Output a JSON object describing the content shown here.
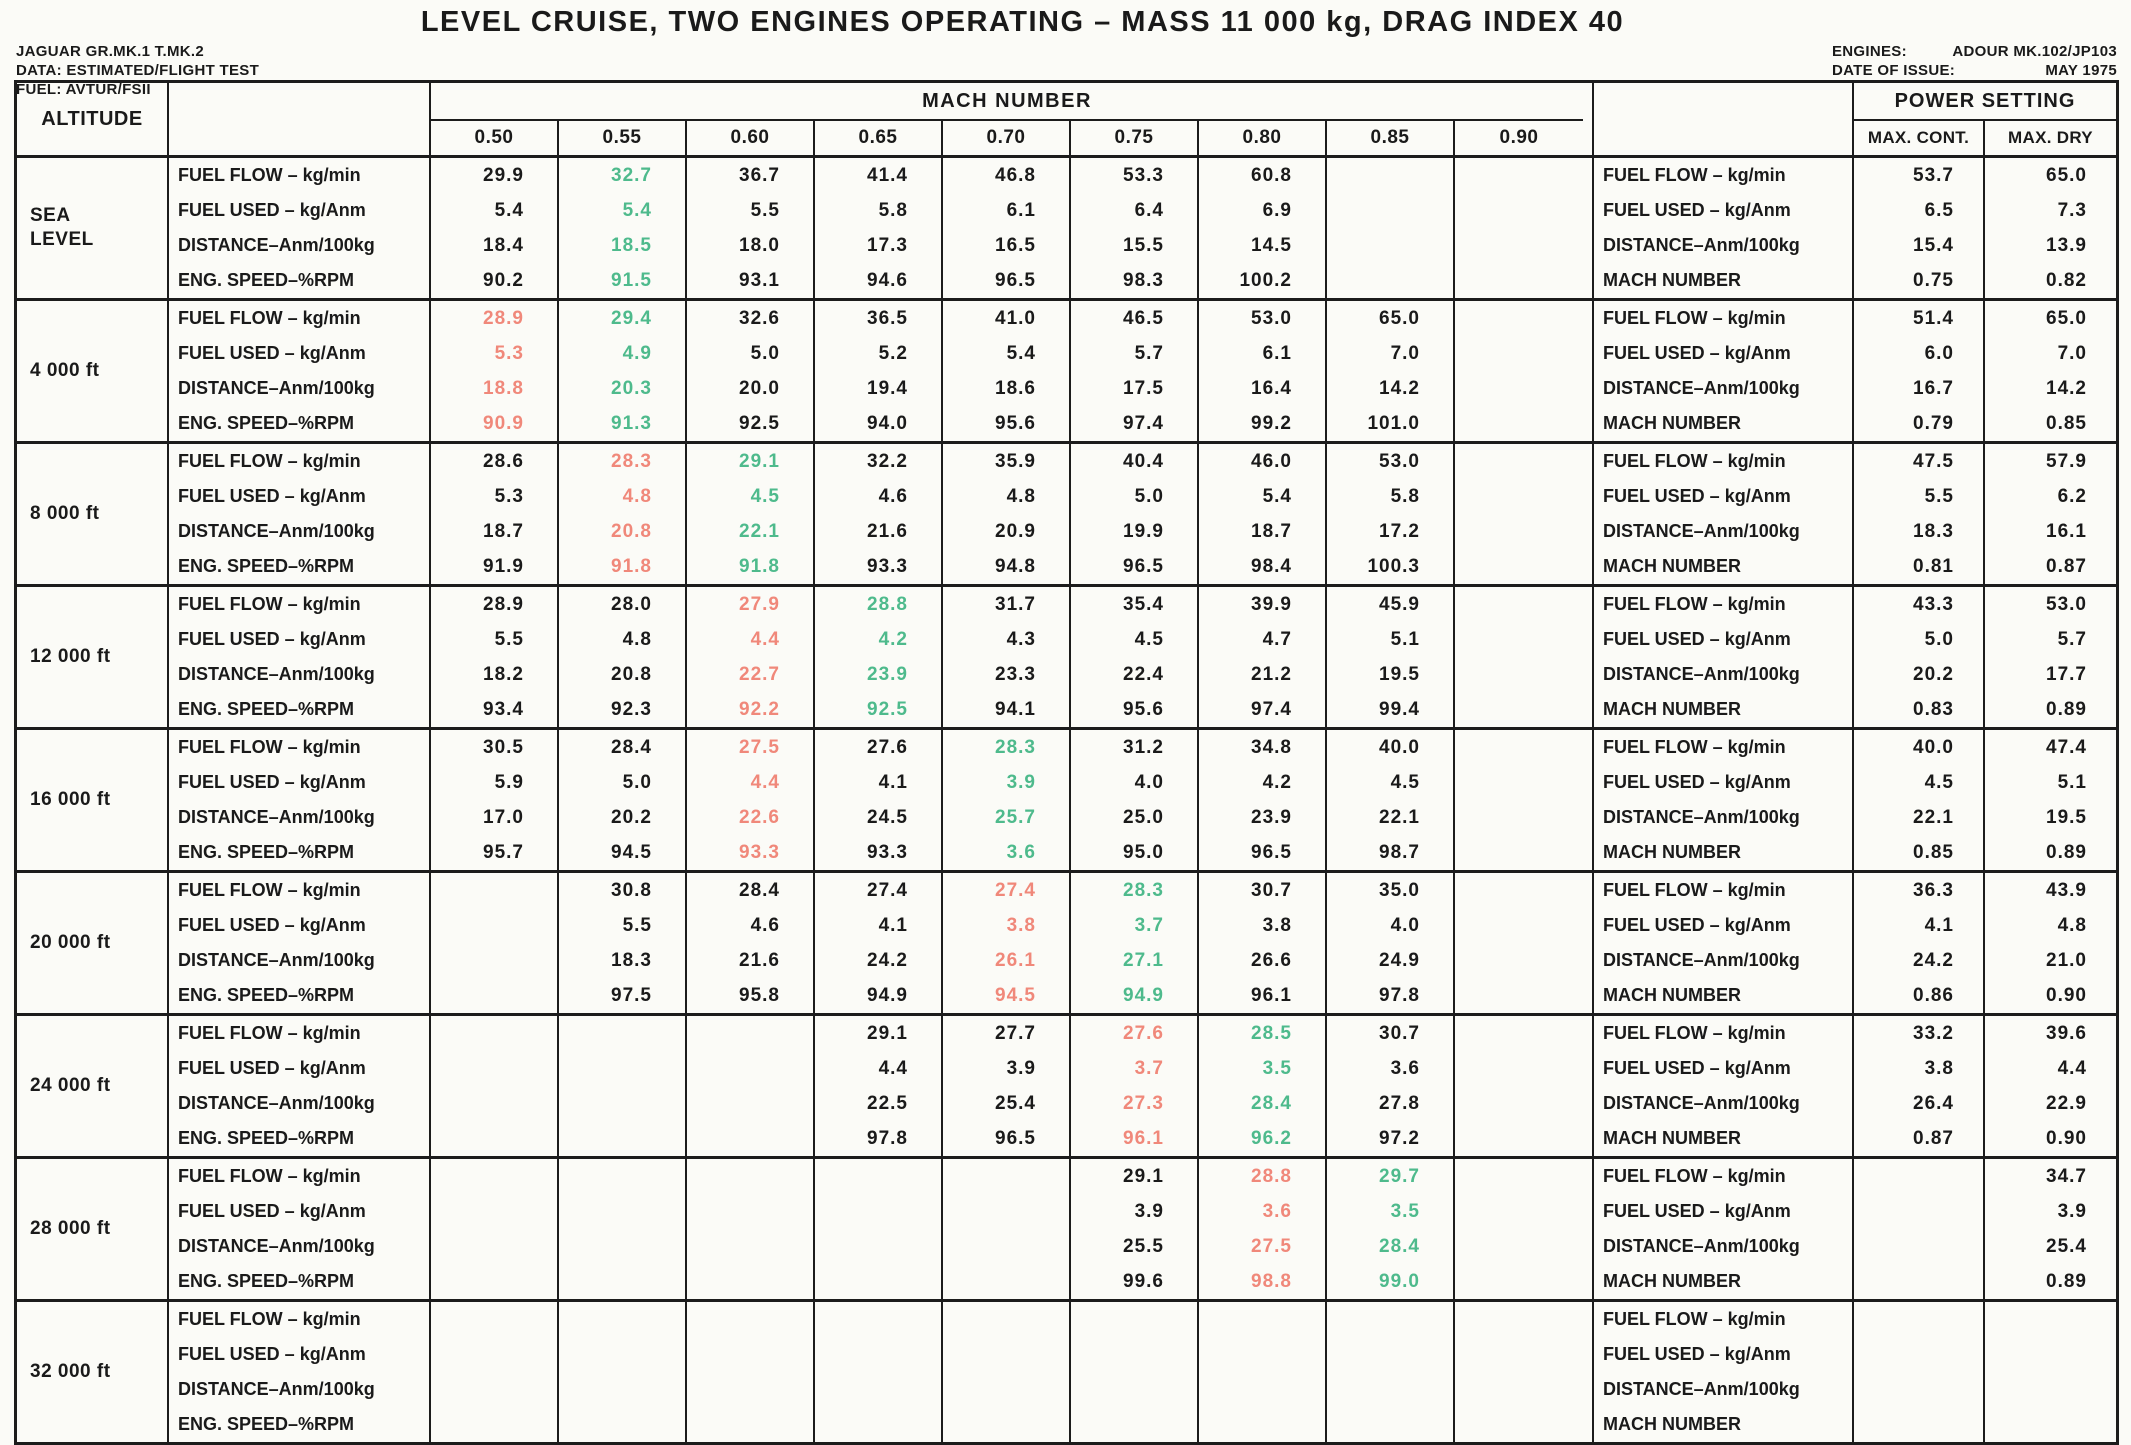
{
  "title": "LEVEL CRUISE, TWO ENGINES OPERATING – MASS 11 000 kg, DRAG INDEX 40",
  "meta_left": {
    "line1": "JAGUAR GR.MK.1 T.MK.2",
    "line2": "DATA: ESTIMATED/FLIGHT TEST",
    "line3": "FUEL: AVTUR/FSII"
  },
  "meta_right": {
    "engines_label": "ENGINES:",
    "engines_value": "ADOUR MK.102/JP103",
    "date_label": "DATE OF ISSUE:",
    "date_value": "MAY 1975"
  },
  "table": {
    "altitude_header": "ALTITUDE",
    "mach_header": "MACH NUMBER",
    "mach_columns": [
      "0.50",
      "0.55",
      "0.60",
      "0.65",
      "0.70",
      "0.75",
      "0.80",
      "0.85",
      "0.90"
    ],
    "power_header": "POWER SETTING",
    "power_columns": [
      "MAX. CONT.",
      "MAX. DRY"
    ],
    "row_labels": [
      "FUEL FLOW – kg/min",
      "FUEL USED – kg/Anm",
      "DISTANCE–Anm/100kg",
      "ENG. SPEED–%RPM"
    ],
    "power_row_labels": [
      "FUEL FLOW – kg/min",
      "FUEL USED – kg/Anm",
      "DISTANCE–Anm/100kg",
      "MACH NUMBER"
    ],
    "colors": {
      "green": "#4eba8c",
      "red": "#f0887a",
      "black": "#1a1a1a"
    },
    "bands": [
      {
        "altitude": "SEA\nLEVEL",
        "rows": [
          {
            "values": [
              "29.9",
              "32.7",
              "36.7",
              "41.4",
              "46.8",
              "53.3",
              "60.8",
              "",
              ""
            ],
            "colors": "kgkkkkkkk"
          },
          {
            "values": [
              "5.4",
              "5.4",
              "5.5",
              "5.8",
              "6.1",
              "6.4",
              "6.9",
              "",
              ""
            ],
            "colors": "kgkkkkkkk"
          },
          {
            "values": [
              "18.4",
              "18.5",
              "18.0",
              "17.3",
              "16.5",
              "15.5",
              "14.5",
              "",
              ""
            ],
            "colors": "kgkkkkkkk"
          },
          {
            "values": [
              "90.2",
              "91.5",
              "93.1",
              "94.6",
              "96.5",
              "98.3",
              "100.2",
              "",
              ""
            ],
            "colors": "kgkkkkkkk"
          }
        ],
        "power": {
          "max_cont": [
            "53.7",
            "6.5",
            "15.4",
            "0.75"
          ],
          "max_dry": [
            "65.0",
            "7.3",
            "13.9",
            "0.82"
          ]
        }
      },
      {
        "altitude": "4 000 ft",
        "rows": [
          {
            "values": [
              "28.9",
              "29.4",
              "32.6",
              "36.5",
              "41.0",
              "46.5",
              "53.0",
              "65.0",
              ""
            ],
            "colors": "rgkkkkkkk"
          },
          {
            "values": [
              "5.3",
              "4.9",
              "5.0",
              "5.2",
              "5.4",
              "5.7",
              "6.1",
              "7.0",
              ""
            ],
            "colors": "rgkkkkkkk"
          },
          {
            "values": [
              "18.8",
              "20.3",
              "20.0",
              "19.4",
              "18.6",
              "17.5",
              "16.4",
              "14.2",
              ""
            ],
            "colors": "rgkkkkkkk"
          },
          {
            "values": [
              "90.9",
              "91.3",
              "92.5",
              "94.0",
              "95.6",
              "97.4",
              "99.2",
              "101.0",
              ""
            ],
            "colors": "rgkkkkkkk"
          }
        ],
        "power": {
          "max_cont": [
            "51.4",
            "6.0",
            "16.7",
            "0.79"
          ],
          "max_dry": [
            "65.0",
            "7.0",
            "14.2",
            "0.85"
          ]
        }
      },
      {
        "altitude": "8 000 ft",
        "rows": [
          {
            "values": [
              "28.6",
              "28.3",
              "29.1",
              "32.2",
              "35.9",
              "40.4",
              "46.0",
              "53.0",
              ""
            ],
            "colors": "krgkkkkkk"
          },
          {
            "values": [
              "5.3",
              "4.8",
              "4.5",
              "4.6",
              "4.8",
              "5.0",
              "5.4",
              "5.8",
              ""
            ],
            "colors": "krgkkkkkk"
          },
          {
            "values": [
              "18.7",
              "20.8",
              "22.1",
              "21.6",
              "20.9",
              "19.9",
              "18.7",
              "17.2",
              ""
            ],
            "colors": "krgkkkkkk"
          },
          {
            "values": [
              "91.9",
              "91.8",
              "91.8",
              "93.3",
              "94.8",
              "96.5",
              "98.4",
              "100.3",
              ""
            ],
            "colors": "krgkkkkkk"
          }
        ],
        "power": {
          "max_cont": [
            "47.5",
            "5.5",
            "18.3",
            "0.81"
          ],
          "max_dry": [
            "57.9",
            "6.2",
            "16.1",
            "0.87"
          ]
        }
      },
      {
        "altitude": "12 000 ft",
        "rows": [
          {
            "values": [
              "28.9",
              "28.0",
              "27.9",
              "28.8",
              "31.7",
              "35.4",
              "39.9",
              "45.9",
              ""
            ],
            "colors": "kkrgkkkkk"
          },
          {
            "values": [
              "5.5",
              "4.8",
              "4.4",
              "4.2",
              "4.3",
              "4.5",
              "4.7",
              "5.1",
              ""
            ],
            "colors": "kkrgkkkkk"
          },
          {
            "values": [
              "18.2",
              "20.8",
              "22.7",
              "23.9",
              "23.3",
              "22.4",
              "21.2",
              "19.5",
              ""
            ],
            "colors": "kkrgkkkkk"
          },
          {
            "values": [
              "93.4",
              "92.3",
              "92.2",
              "92.5",
              "94.1",
              "95.6",
              "97.4",
              "99.4",
              ""
            ],
            "colors": "kkrgkkkkk"
          }
        ],
        "power": {
          "max_cont": [
            "43.3",
            "5.0",
            "20.2",
            "0.83"
          ],
          "max_dry": [
            "53.0",
            "5.7",
            "17.7",
            "0.89"
          ]
        }
      },
      {
        "altitude": "16 000 ft",
        "rows": [
          {
            "values": [
              "30.5",
              "28.4",
              "27.5",
              "27.6",
              "28.3",
              "31.2",
              "34.8",
              "40.0",
              ""
            ],
            "colors": "kkrkgkkkk"
          },
          {
            "values": [
              "5.9",
              "5.0",
              "4.4",
              "4.1",
              "3.9",
              "4.0",
              "4.2",
              "4.5",
              ""
            ],
            "colors": "kkrkgkkkk"
          },
          {
            "values": [
              "17.0",
              "20.2",
              "22.6",
              "24.5",
              "25.7",
              "25.0",
              "23.9",
              "22.1",
              ""
            ],
            "colors": "kkrkgkkkk"
          },
          {
            "values": [
              "95.7",
              "94.5",
              "93.3",
              "93.3",
              "3.6",
              "95.0",
              "96.5",
              "98.7",
              ""
            ],
            "colors": "kkrkgkkkk"
          }
        ],
        "power": {
          "max_cont": [
            "40.0",
            "4.5",
            "22.1",
            "0.85"
          ],
          "max_dry": [
            "47.4",
            "5.1",
            "19.5",
            "0.89"
          ]
        }
      },
      {
        "altitude": "20 000 ft",
        "rows": [
          {
            "values": [
              "",
              "30.8",
              "28.4",
              "27.4",
              "27.4",
              "28.3",
              "30.7",
              "35.0",
              ""
            ],
            "colors": "kkkkrgkkk"
          },
          {
            "values": [
              "",
              "5.5",
              "4.6",
              "4.1",
              "3.8",
              "3.7",
              "3.8",
              "4.0",
              ""
            ],
            "colors": "kkkkrgkkk"
          },
          {
            "values": [
              "",
              "18.3",
              "21.6",
              "24.2",
              "26.1",
              "27.1",
              "26.6",
              "24.9",
              ""
            ],
            "colors": "kkkkrgkkk"
          },
          {
            "values": [
              "",
              "97.5",
              "95.8",
              "94.9",
              "94.5",
              "94.9",
              "96.1",
              "97.8",
              ""
            ],
            "colors": "kkkkrgkkk"
          }
        ],
        "power": {
          "max_cont": [
            "36.3",
            "4.1",
            "24.2",
            "0.86"
          ],
          "max_dry": [
            "43.9",
            "4.8",
            "21.0",
            "0.90"
          ]
        }
      },
      {
        "altitude": "24 000 ft",
        "rows": [
          {
            "values": [
              "",
              "",
              "",
              "29.1",
              "27.7",
              "27.6",
              "28.5",
              "30.7",
              ""
            ],
            "colors": "kkkkkrgkk"
          },
          {
            "values": [
              "",
              "",
              "",
              "4.4",
              "3.9",
              "3.7",
              "3.5",
              "3.6",
              ""
            ],
            "colors": "kkkkkrgkk"
          },
          {
            "values": [
              "",
              "",
              "",
              "22.5",
              "25.4",
              "27.3",
              "28.4",
              "27.8",
              ""
            ],
            "colors": "kkkkkrgkk"
          },
          {
            "values": [
              "",
              "",
              "",
              "97.8",
              "96.5",
              "96.1",
              "96.2",
              "97.2",
              ""
            ],
            "colors": "kkkkkrgkk"
          }
        ],
        "power": {
          "max_cont": [
            "33.2",
            "3.8",
            "26.4",
            "0.87"
          ],
          "max_dry": [
            "39.6",
            "4.4",
            "22.9",
            "0.90"
          ]
        }
      },
      {
        "altitude": "28 000 ft",
        "rows": [
          {
            "values": [
              "",
              "",
              "",
              "",
              "",
              "29.1",
              "28.8",
              "29.7",
              ""
            ],
            "colors": "kkkkkkrgk"
          },
          {
            "values": [
              "",
              "",
              "",
              "",
              "",
              "3.9",
              "3.6",
              "3.5",
              ""
            ],
            "colors": "kkkkkkrgk"
          },
          {
            "values": [
              "",
              "",
              "",
              "",
              "",
              "25.5",
              "27.5",
              "28.4",
              ""
            ],
            "colors": "kkkkkkrgk"
          },
          {
            "values": [
              "",
              "",
              "",
              "",
              "",
              "99.6",
              "98.8",
              "99.0",
              ""
            ],
            "colors": "kkkkkkrgk"
          }
        ],
        "power": {
          "max_cont": [
            "",
            "",
            "",
            ""
          ],
          "max_dry": [
            "34.7",
            "3.9",
            "25.4",
            "0.89"
          ]
        }
      },
      {
        "altitude": "32 000 ft",
        "rows": [
          {
            "values": [
              "",
              "",
              "",
              "",
              "",
              "",
              "",
              "",
              ""
            ],
            "colors": "kkkkkkkkk"
          },
          {
            "values": [
              "",
              "",
              "",
              "",
              "",
              "",
              "",
              "",
              ""
            ],
            "colors": "kkkkkkkkk"
          },
          {
            "values": [
              "",
              "",
              "",
              "",
              "",
              "",
              "",
              "",
              ""
            ],
            "colors": "kkkkkkkkk"
          },
          {
            "values": [
              "",
              "",
              "",
              "",
              "",
              "",
              "",
              "",
              ""
            ],
            "colors": "kkkkkkkkk"
          }
        ],
        "power": {
          "max_cont": [
            "",
            "",
            "",
            ""
          ],
          "max_dry": [
            "",
            "",
            "",
            ""
          ]
        }
      }
    ]
  }
}
